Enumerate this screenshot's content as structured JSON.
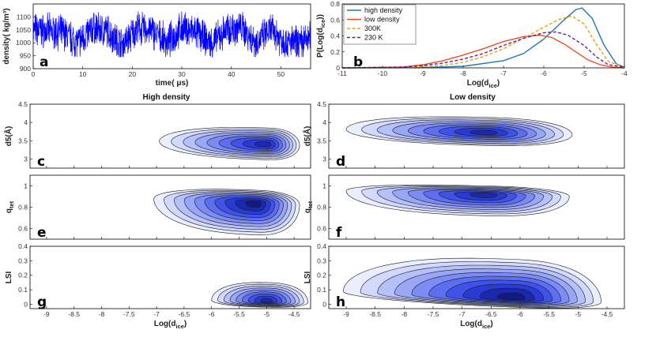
{
  "chart_data": [
    {
      "id": "a",
      "type": "line",
      "panel_label": "a",
      "xlabel": "time( μs)",
      "ylabel": "density( kg/m³)",
      "xlim": [
        0,
        56
      ],
      "ylim": [
        900,
        1150
      ],
      "xticks": [
        "0",
        "10",
        "20",
        "30",
        "40",
        "50"
      ],
      "yticks": [
        "900",
        "950",
        "1000",
        "1050",
        "1100"
      ],
      "color": "#0000ff",
      "series": {
        "t": [
          0,
          3,
          6,
          9,
          12,
          15,
          18,
          21,
          24,
          27,
          30,
          33,
          36,
          39,
          42,
          45,
          48,
          51,
          54,
          56
        ],
        "mean": [
          1050,
          1045,
          1040,
          1000,
          1055,
          1045,
          990,
          1055,
          1045,
          1000,
          1055,
          1040,
          995,
          1050,
          1060,
          1000,
          1050,
          1000,
          1000,
          1020
        ]
      }
    },
    {
      "id": "b",
      "type": "line",
      "panel_label": "b",
      "xlabel": "Log(d_ice)",
      "ylabel": "P(Log(d_ice))",
      "xlim": [
        -11,
        -4
      ],
      "ylim": [
        0,
        0.8
      ],
      "xticks": [
        "-11",
        "-10",
        "-9",
        "-8",
        "-7",
        "-6",
        "-5",
        "-4"
      ],
      "yticks": [
        "0",
        "0.2",
        "0.4",
        "0.6",
        "0.8"
      ],
      "legend_position": "top-left",
      "series": [
        {
          "name": "high density",
          "color": "#1f77b4",
          "dash": "solid",
          "x": [
            -11,
            -9,
            -8,
            -7,
            -6.5,
            -6,
            -5.5,
            -5.2,
            -5.05,
            -4.8,
            -4.5,
            -4.2,
            -4
          ],
          "y": [
            0,
            0.003,
            0.02,
            0.09,
            0.18,
            0.36,
            0.6,
            0.73,
            0.75,
            0.62,
            0.28,
            0.05,
            0.01
          ]
        },
        {
          "name": "low density",
          "color": "#e8511d",
          "dash": "solid",
          "x": [
            -11,
            -9.5,
            -9,
            -8.5,
            -8,
            -7.5,
            -7,
            -6.5,
            -6.1,
            -5.8,
            -5.5,
            -5.2,
            -4.9,
            -4.6,
            -4.3,
            -4
          ],
          "y": [
            0,
            0.01,
            0.04,
            0.09,
            0.16,
            0.24,
            0.33,
            0.39,
            0.41,
            0.38,
            0.3,
            0.2,
            0.1,
            0.04,
            0.01,
            0
          ]
        },
        {
          "name": "300K",
          "color": "#e8a20b",
          "dash": "dashed",
          "x": [
            -11,
            -9.5,
            -8.5,
            -8,
            -7.5,
            -7,
            -6.5,
            -6,
            -5.6,
            -5.3,
            -5,
            -4.7,
            -4.4,
            -4
          ],
          "y": [
            0,
            0.005,
            0.03,
            0.07,
            0.14,
            0.24,
            0.37,
            0.51,
            0.61,
            0.65,
            0.55,
            0.3,
            0.08,
            0.01
          ]
        },
        {
          "name": "230 K",
          "color": "#6a1b9a",
          "dash": "dashed",
          "x": [
            -11,
            -9.5,
            -9,
            -8.5,
            -8,
            -7.5,
            -7,
            -6.5,
            -6,
            -5.7,
            -5.4,
            -5,
            -4.7,
            -4.4,
            -4
          ],
          "y": [
            0,
            0.01,
            0.03,
            0.06,
            0.11,
            0.18,
            0.28,
            0.37,
            0.44,
            0.45,
            0.41,
            0.28,
            0.14,
            0.04,
            0.01
          ]
        }
      ]
    },
    {
      "id": "c",
      "type": "heatmap",
      "panel_label": "c",
      "title": "High density",
      "xlim": [
        -9.3,
        -4.2
      ],
      "ylim": [
        2.75,
        4.5
      ],
      "ylabel": "d5(Å)",
      "yticks": [
        "3",
        "3.5",
        "4",
        "4.5"
      ],
      "peak": [
        -5.0,
        3.4
      ],
      "extent_left": -6.95,
      "extent_right": -4.4,
      "spread_bottom": 0.42,
      "spread_top": 0.45,
      "levels": 9
    },
    {
      "id": "d",
      "type": "heatmap",
      "panel_label": "d",
      "title": "Low density",
      "xlim": [
        -9.3,
        -4.2
      ],
      "ylim": [
        2.75,
        4.5
      ],
      "ylabel": "d5(Å)",
      "yticks": [
        "3",
        "3.5",
        "4",
        "4.5"
      ],
      "peak": [
        -6.6,
        3.72
      ],
      "extent_left": -9.0,
      "extent_right": -5.1,
      "spread_bottom": 0.35,
      "spread_top": 0.42,
      "levels": 9
    },
    {
      "id": "e",
      "type": "heatmap",
      "panel_label": "e",
      "xlim": [
        -9.3,
        -4.2
      ],
      "ylim": [
        0.5,
        1.1
      ],
      "ylabel": "q_tet",
      "yticks": [
        "0.6",
        "0.8",
        "1"
      ],
      "peak": [
        -5.2,
        0.84
      ],
      "extent_left": -7.05,
      "extent_right": -4.4,
      "spread_bottom": 0.3,
      "spread_top": 0.12,
      "levels": 10
    },
    {
      "id": "f",
      "type": "heatmap",
      "panel_label": "f",
      "xlim": [
        -9.3,
        -4.2
      ],
      "ylim": [
        0.5,
        1.1
      ],
      "ylabel": "q_tet",
      "yticks": [
        "0.6",
        "0.8",
        "1"
      ],
      "peak": [
        -6.6,
        0.92
      ],
      "extent_left": -9.0,
      "extent_right": -5.15,
      "spread_bottom": 0.2,
      "spread_top": 0.08,
      "levels": 9
    },
    {
      "id": "g",
      "type": "heatmap",
      "panel_label": "g",
      "xlim": [
        -9.3,
        -4.2
      ],
      "ylim": [
        -0.03,
        0.4
      ],
      "xlabel": "Log(d_ice)",
      "ylabel": "LSI",
      "xticks": [
        "-9",
        "-8.5",
        "-8",
        "-7.5",
        "-7",
        "-6.5",
        "-6",
        "-5.5",
        "-5",
        "-4.5"
      ],
      "yticks": [
        "0",
        "0.1",
        "0.2",
        "0.3",
        "0.4"
      ],
      "peak": [
        -5.0,
        0.02
      ],
      "extent_left": -6.0,
      "extent_right": -4.25,
      "spread_bottom": 0.04,
      "spread_top": 0.13,
      "levels": 9
    },
    {
      "id": "h",
      "type": "heatmap",
      "panel_label": "h",
      "xlim": [
        -9.3,
        -4.2
      ],
      "ylim": [
        -0.03,
        0.4
      ],
      "xlabel": "Log(d_ice)",
      "ylabel": "LSI",
      "xticks": [
        "-9",
        "-8.5",
        "-8",
        "-7.5",
        "-7",
        "-6.5",
        "-6",
        "-5.5",
        "-5",
        "-4.5"
      ],
      "yticks": [
        "0",
        "0.1",
        "0.2",
        "0.3",
        "0.4"
      ],
      "peak": [
        -6.1,
        0.04
      ],
      "extent_left": -9.05,
      "extent_right": -4.6,
      "spread_bottom": 0.06,
      "spread_top": 0.27,
      "levels": 10
    }
  ]
}
